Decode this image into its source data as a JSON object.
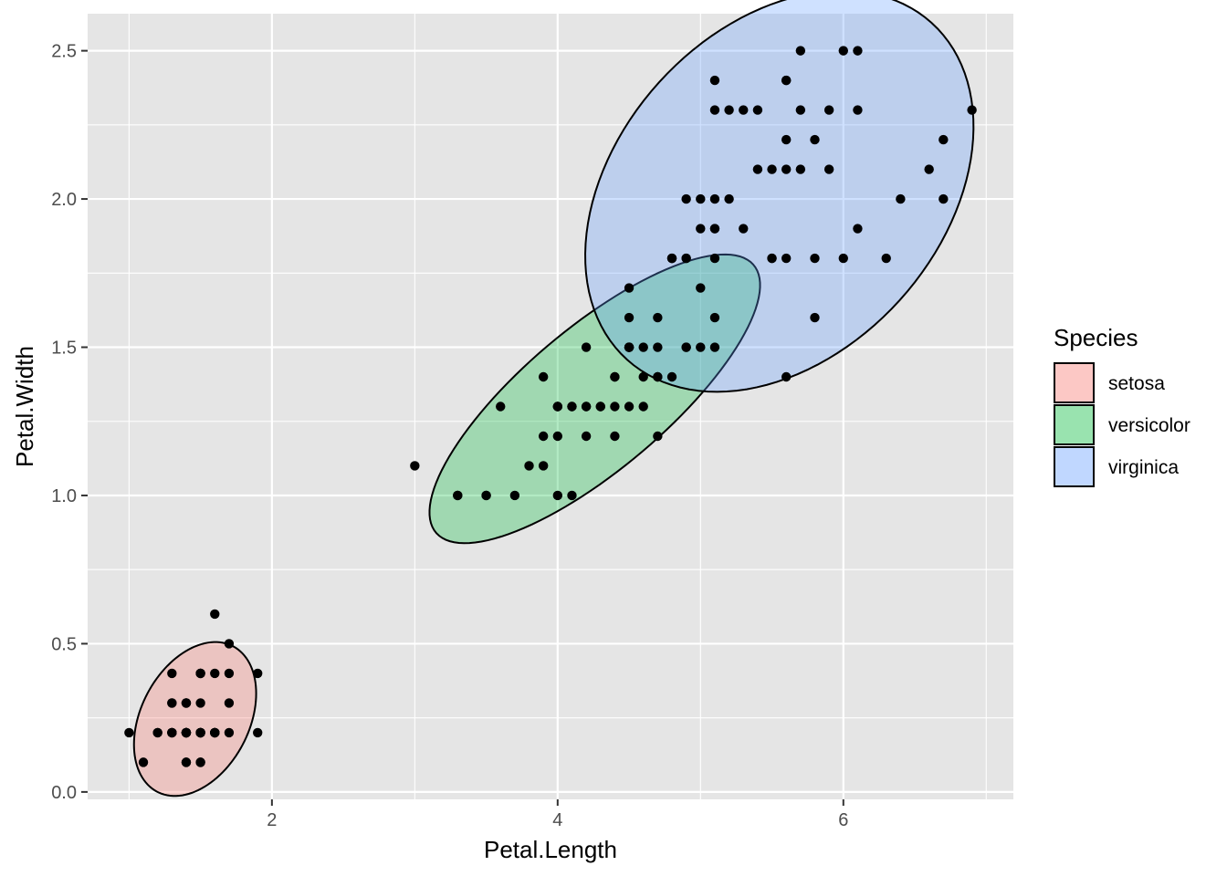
{
  "chart_data": {
    "type": "scatter",
    "title": "",
    "xlabel": "Petal.Length",
    "ylabel": "Petal.Width",
    "xlim": [
      0.71,
      7.19
    ],
    "ylim": [
      -0.025,
      2.625
    ],
    "x_ticks": [
      2,
      4,
      6
    ],
    "y_ticks": [
      0.0,
      0.5,
      1.0,
      1.5,
      2.0,
      2.5
    ],
    "x_tick_labels": [
      "2",
      "4",
      "6"
    ],
    "y_tick_labels": [
      "0.0",
      "0.5",
      "1.0",
      "1.5",
      "2.0",
      "2.5"
    ],
    "grid": true,
    "panel_background": "#e5e5e5",
    "grid_color": "#ffffff",
    "point_color": "#000000",
    "legend": {
      "title": "Species",
      "position": "right",
      "entries": [
        {
          "label": "setosa",
          "color": "#F8766D"
        },
        {
          "label": "versicolor",
          "color": "#00BA38"
        },
        {
          "label": "virginica",
          "color": "#619CFF"
        }
      ]
    },
    "series": [
      {
        "name": "setosa",
        "color": "#F8766D",
        "x": [
          1.4,
          1.4,
          1.3,
          1.5,
          1.4,
          1.7,
          1.4,
          1.5,
          1.4,
          1.5,
          1.5,
          1.6,
          1.4,
          1.1,
          1.2,
          1.5,
          1.3,
          1.4,
          1.7,
          1.5,
          1.7,
          1.5,
          1.0,
          1.7,
          1.9,
          1.6,
          1.6,
          1.5,
          1.4,
          1.6,
          1.6,
          1.5,
          1.5,
          1.4,
          1.5,
          1.2,
          1.3,
          1.4,
          1.3,
          1.5,
          1.3,
          1.3,
          1.3,
          1.6,
          1.9,
          1.4,
          1.6,
          1.4,
          1.5,
          1.4
        ],
        "y": [
          0.2,
          0.2,
          0.2,
          0.2,
          0.2,
          0.4,
          0.3,
          0.2,
          0.2,
          0.1,
          0.2,
          0.2,
          0.1,
          0.1,
          0.2,
          0.4,
          0.4,
          0.3,
          0.3,
          0.3,
          0.2,
          0.4,
          0.2,
          0.5,
          0.2,
          0.2,
          0.4,
          0.2,
          0.2,
          0.2,
          0.2,
          0.4,
          0.1,
          0.2,
          0.2,
          0.2,
          0.2,
          0.1,
          0.2,
          0.2,
          0.3,
          0.3,
          0.2,
          0.6,
          0.4,
          0.3,
          0.2,
          0.2,
          0.2,
          0.2
        ]
      },
      {
        "name": "versicolor",
        "color": "#00BA38",
        "x": [
          4.7,
          4.5,
          4.9,
          4.0,
          4.6,
          4.5,
          4.7,
          3.3,
          4.6,
          3.9,
          3.5,
          4.2,
          4.0,
          4.7,
          3.6,
          4.4,
          4.5,
          4.1,
          4.5,
          3.9,
          4.8,
          4.0,
          4.9,
          4.7,
          4.3,
          4.4,
          4.8,
          5.0,
          4.5,
          3.5,
          3.8,
          3.7,
          3.9,
          5.1,
          4.5,
          4.5,
          4.7,
          4.4,
          4.1,
          4.0,
          4.4,
          4.6,
          4.0,
          3.3,
          4.2,
          4.2,
          4.2,
          4.3,
          3.0,
          4.1
        ],
        "y": [
          1.4,
          1.5,
          1.5,
          1.3,
          1.5,
          1.3,
          1.6,
          1.0,
          1.3,
          1.4,
          1.0,
          1.5,
          1.0,
          1.4,
          1.3,
          1.4,
          1.5,
          1.0,
          1.5,
          1.1,
          1.8,
          1.3,
          1.5,
          1.2,
          1.3,
          1.4,
          1.4,
          1.7,
          1.5,
          1.0,
          1.1,
          1.0,
          1.2,
          1.6,
          1.5,
          1.6,
          1.5,
          1.3,
          1.3,
          1.3,
          1.2,
          1.4,
          1.2,
          1.0,
          1.3,
          1.2,
          1.3,
          1.3,
          1.1,
          1.3
        ]
      },
      {
        "name": "virginica",
        "color": "#619CFF",
        "x": [
          6.0,
          5.1,
          5.9,
          5.6,
          5.8,
          6.6,
          4.5,
          6.3,
          5.8,
          6.1,
          5.1,
          5.3,
          5.5,
          5.0,
          5.1,
          5.3,
          5.5,
          6.7,
          6.9,
          5.0,
          5.7,
          4.9,
          6.7,
          4.9,
          5.7,
          6.0,
          4.8,
          4.9,
          5.6,
          5.8,
          6.1,
          6.4,
          5.6,
          5.1,
          5.6,
          6.1,
          5.6,
          5.5,
          4.8,
          5.4,
          5.6,
          5.1,
          5.1,
          5.9,
          5.7,
          5.2,
          5.0,
          5.2,
          5.4,
          5.1
        ],
        "y": [
          2.5,
          1.9,
          2.1,
          1.8,
          2.2,
          2.1,
          1.7,
          1.8,
          1.8,
          2.5,
          2.0,
          1.9,
          2.1,
          2.0,
          2.4,
          2.3,
          1.8,
          2.2,
          2.3,
          1.5,
          2.3,
          2.0,
          2.0,
          1.8,
          2.1,
          1.8,
          1.8,
          1.8,
          2.1,
          1.6,
          1.9,
          2.0,
          2.2,
          1.5,
          1.4,
          2.3,
          2.4,
          1.8,
          1.8,
          2.1,
          2.4,
          2.3,
          1.9,
          2.3,
          2.5,
          2.3,
          1.9,
          2.0,
          2.3,
          1.8
        ]
      }
    ]
  }
}
